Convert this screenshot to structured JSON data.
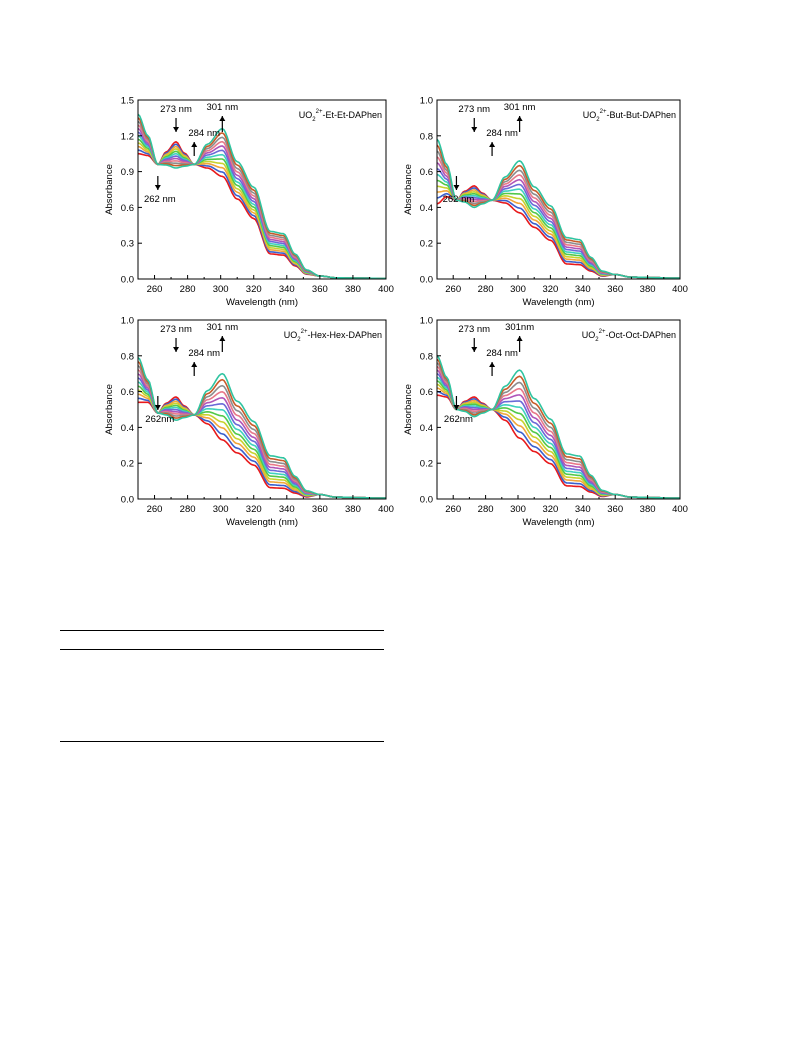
{
  "chart_data": [
    {
      "type": "line",
      "panel": "top-left",
      "title_main": "UO",
      "title_sub": "2",
      "title_sup": "2+",
      "title_rest": "-Et-Et-DAPhen",
      "xlabel": "Wavelength (nm)",
      "ylabel": "Absorbance",
      "xlim": [
        250,
        400
      ],
      "ylim": [
        0,
        1.5
      ],
      "x_ticks": [
        "260",
        "280",
        "300",
        "320",
        "340",
        "360",
        "380",
        "400"
      ],
      "y_ticks": [
        "0.0",
        "0.3",
        "0.6",
        "0.9",
        "1.2",
        "1.5"
      ],
      "y_tick_values": [
        0,
        0.3,
        0.6,
        0.9,
        1.2,
        1.5
      ],
      "annotations": [
        {
          "text": "273 nm",
          "x": 273,
          "direction": "down"
        },
        {
          "text": "284 nm",
          "x": 284,
          "direction": "up"
        },
        {
          "text": "301 nm",
          "x": 301,
          "direction": "up"
        },
        {
          "text": "262 nm",
          "x": 262,
          "direction": "down"
        }
      ],
      "start": {
        "y250": 1.05,
        "p273": 1.15,
        "t284": 0.96,
        "p301": 0.86,
        "shoulder": 0.2
      },
      "end": {
        "y250": 1.38,
        "p273": 0.93,
        "t284": 0.96,
        "p301": 1.26,
        "shoulder": 0.38
      },
      "iso1": [
        262,
        0.96
      ],
      "iso2": [
        284,
        0.96
      ],
      "n_curves": 12
    },
    {
      "type": "line",
      "panel": "top-right",
      "title_main": "UO",
      "title_sub": "2",
      "title_sup": "2+",
      "title_rest": "-But-But-DAPhen",
      "xlabel": "Wavelength (nm)",
      "ylabel": "Absorbance",
      "xlim": [
        250,
        400
      ],
      "ylim": [
        0,
        1.0
      ],
      "x_ticks": [
        "260",
        "280",
        "300",
        "320",
        "340",
        "360",
        "380",
        "400"
      ],
      "y_ticks": [
        "0.0",
        "0.2",
        "0.4",
        "0.6",
        "0.8",
        "1.0"
      ],
      "y_tick_values": [
        0,
        0.2,
        0.4,
        0.6,
        0.8,
        1.0
      ],
      "annotations": [
        {
          "text": "273 nm",
          "x": 273,
          "direction": "down"
        },
        {
          "text": "284 nm",
          "x": 284,
          "direction": "up"
        },
        {
          "text": "301 nm",
          "x": 301,
          "direction": "up"
        },
        {
          "text": "262 nm",
          "x": 262,
          "direction": "down"
        }
      ],
      "start": {
        "y250": 0.42,
        "p273": 0.52,
        "t284": 0.44,
        "p301": 0.37,
        "shoulder": 0.08
      },
      "end": {
        "y250": 0.78,
        "p273": 0.4,
        "t284": 0.44,
        "p301": 0.66,
        "shoulder": 0.22
      },
      "iso1": [
        262,
        0.44
      ],
      "iso2": [
        284,
        0.44
      ],
      "n_curves": 12
    },
    {
      "type": "line",
      "panel": "bottom-left",
      "title_main": "UO",
      "title_sub": "2",
      "title_sup": "2+",
      "title_rest": "-Hex-Hex-DAPhen",
      "xlabel": "Wavelength (nm)",
      "ylabel": "Absorbance",
      "xlim": [
        250,
        400
      ],
      "ylim": [
        0,
        1.0
      ],
      "x_ticks": [
        "260",
        "280",
        "300",
        "320",
        "340",
        "360",
        "380",
        "400"
      ],
      "y_ticks": [
        "0.0",
        "0.2",
        "0.4",
        "0.6",
        "0.8",
        "1.0"
      ],
      "y_tick_values": [
        0,
        0.2,
        0.4,
        0.6,
        0.8,
        1.0
      ],
      "annotations": [
        {
          "text": "273 nm",
          "x": 273,
          "direction": "down"
        },
        {
          "text": "284 nm",
          "x": 284,
          "direction": "up"
        },
        {
          "text": "301 nm",
          "x": 301,
          "direction": "up"
        },
        {
          "text": "262nm",
          "x": 262,
          "direction": "down"
        }
      ],
      "start": {
        "y250": 0.54,
        "p273": 0.57,
        "t284": 0.47,
        "p301": 0.33,
        "shoulder": 0.06
      },
      "end": {
        "y250": 0.79,
        "p273": 0.44,
        "t284": 0.47,
        "p301": 0.7,
        "shoulder": 0.23
      },
      "iso1": [
        262,
        0.48
      ],
      "iso2": [
        284,
        0.47
      ],
      "n_curves": 12
    },
    {
      "type": "line",
      "panel": "bottom-right",
      "title_main": "UO",
      "title_sub": "2",
      "title_sup": "2+",
      "title_rest": "-Oct-Oct-DAPhen",
      "xlabel": "Wavelength (nm)",
      "ylabel": "Absorbance",
      "xlim": [
        250,
        400
      ],
      "ylim": [
        0,
        1.0
      ],
      "x_ticks": [
        "260",
        "280",
        "300",
        "320",
        "340",
        "360",
        "380",
        "400"
      ],
      "y_ticks": [
        "0.0",
        "0.2",
        "0.4",
        "0.6",
        "0.8",
        "1.0"
      ],
      "y_tick_values": [
        0,
        0.2,
        0.4,
        0.6,
        0.8,
        1.0
      ],
      "annotations": [
        {
          "text": "273 nm",
          "x": 273,
          "direction": "down"
        },
        {
          "text": "284 nm",
          "x": 284,
          "direction": "up"
        },
        {
          "text": "301nm",
          "x": 301,
          "direction": "up"
        },
        {
          "text": "262nm",
          "x": 262,
          "direction": "down"
        }
      ],
      "start": {
        "y250": 0.58,
        "p273": 0.57,
        "t284": 0.5,
        "p301": 0.34,
        "shoulder": 0.07
      },
      "end": {
        "y250": 0.8,
        "p273": 0.46,
        "t284": 0.5,
        "p301": 0.72,
        "shoulder": 0.24
      },
      "iso1": [
        262,
        0.5
      ],
      "iso2": [
        284,
        0.5
      ],
      "n_curves": 12
    }
  ],
  "curve_colors": [
    "#e8191b",
    "#3a5fcd",
    "#f2a63a",
    "#c8d22e",
    "#52c84a",
    "#3fd1bf",
    "#6a6ad8",
    "#b055b8",
    "#e87888",
    "#8c8c8c",
    "#c85c2a",
    "#2fc4a0"
  ],
  "colors": {
    "axis": "#000000",
    "text": "#000000"
  }
}
